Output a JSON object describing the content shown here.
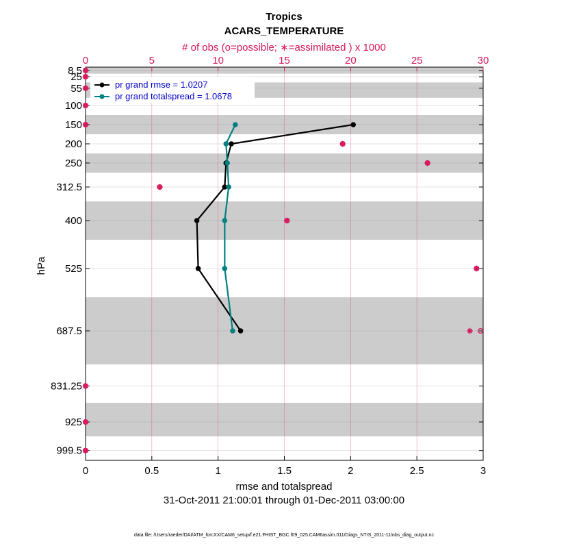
{
  "chart_data": {
    "type": "line",
    "title": "Tropics",
    "subtitle": "ACARS_TEMPERATURE",
    "top_axis_label": "# of obs (o=possible; ∗=assimilated ) x 1000",
    "top_axis_ticks": [
      "0",
      "5",
      "10",
      "15",
      "20",
      "25",
      "30"
    ],
    "top_axis_range": [
      0,
      30
    ],
    "xlabel": "rmse and totalspread",
    "x_ticks": [
      "0",
      "0.5",
      "1",
      "1.5",
      "2",
      "2.5",
      "3"
    ],
    "xlim": [
      0,
      3
    ],
    "ylabel": "hPa",
    "y_levels": [
      8.5,
      25,
      55,
      100,
      150,
      200,
      250,
      312.5,
      400,
      525,
      687.5,
      831.25,
      925,
      999.5
    ],
    "y_tick_labels": [
      "8.5",
      "25",
      "55",
      "100",
      "150",
      "200",
      "250",
      "312.5",
      "400",
      "525",
      "687.5",
      "831.25",
      "925",
      "999.5"
    ],
    "ylim": [
      0,
      1025
    ],
    "date_range": "31-Oct-2011 21:00:01 through 01-Dec-2011 03:00:00",
    "footer": "data file: /Users/raeder/DAI/ATM_forcXX/CAM6_setup/f.e21.FHIST_BGC.f09_025.CAM6assim.011/Diags_NTrS_2011-11/obs_diag_output.nc",
    "series": [
      {
        "name": "pr grand rmse",
        "legend": "pr grand rmse = 1.0207",
        "color": "#000000",
        "levels": [
          150,
          200,
          250,
          312.5,
          400,
          525,
          687.5
        ],
        "values": [
          2.02,
          1.1,
          1.06,
          1.05,
          0.84,
          0.85,
          1.17
        ]
      },
      {
        "name": "pr grand totalspread",
        "legend": "pr grand totalspread = 1.0678",
        "color": "#008080",
        "levels": [
          150,
          200,
          250,
          312.5,
          400,
          525,
          687.5
        ],
        "values": [
          1.13,
          1.06,
          1.07,
          1.08,
          1.05,
          1.05,
          1.11
        ]
      }
    ],
    "obs_counts": {
      "color": "#d6175c",
      "possible_levels": [
        8.5,
        25,
        55,
        100,
        150,
        200,
        250,
        312.5,
        400,
        525,
        687.5,
        831.25,
        925,
        999.5
      ],
      "possible": [
        0,
        0,
        0,
        0,
        0,
        19.4,
        25.8,
        5.6,
        15.2,
        29.5,
        29.8,
        0,
        0,
        0
      ],
      "assimilated_levels": [
        8.5,
        25,
        55,
        100,
        150,
        200,
        250,
        312.5,
        400,
        525,
        687.5,
        831.25,
        925,
        999.5
      ],
      "assimilated": [
        0,
        0,
        0,
        0,
        0,
        19.4,
        25.8,
        5.6,
        15.2,
        29.5,
        29.0,
        0,
        0,
        0
      ]
    },
    "shaded_bands": [
      [
        0,
        17
      ],
      [
        40,
        80
      ],
      [
        125,
        175
      ],
      [
        225,
        275
      ],
      [
        350,
        450
      ],
      [
        600,
        775
      ],
      [
        875,
        962.5
      ]
    ]
  }
}
